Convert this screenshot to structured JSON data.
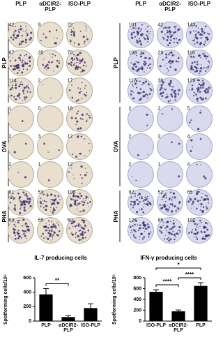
{
  "panels": [
    {
      "columns": [
        "PLP",
        "αDCIR2-PLP",
        "ISO-PLP"
      ],
      "groups": [
        {
          "label": "PLP",
          "rows": [
            [
              42,
              9,
              22
            ],
            [
              67,
              20,
              70
            ],
            [
              114,
              2,
              17
            ]
          ]
        },
        {
          "label": "OVA",
          "rows": [
            [
              1,
              0,
              18
            ],
            [
              2,
              3,
              12
            ],
            [
              2,
              1,
              12
            ]
          ]
        },
        {
          "label": "PHA",
          "rows": [
            [
              81,
              53,
              108
            ],
            [
              69,
              55,
              60
            ]
          ]
        }
      ]
    },
    {
      "columns": [
        "PLP",
        "αDCIR2-PLP",
        "ISO-PLP"
      ],
      "groups": [
        {
          "label": "PLP",
          "rows": [
            [
              101,
              42,
              143
            ],
            [
              108,
              29,
              116
            ],
            [
              117,
              36,
              129
            ]
          ]
        },
        {
          "label": "OVA",
          "rows": [
            [
              2,
              2,
              5
            ],
            [
              2,
              2,
              4
            ],
            [
              2,
              1,
              4
            ]
          ]
        },
        {
          "label": "PHA",
          "rows": [
            [
              92,
              52,
              65
            ],
            [
              124,
              85,
              102
            ]
          ]
        }
      ]
    }
  ],
  "chart_data": [
    {
      "type": "bar",
      "title": "IL-7 producing cells",
      "y_label": "Spotforming cells/10⁶",
      "categories": [
        "PLP",
        "αDCIR2-PLP",
        "ISO-PLP"
      ],
      "values": [
        370,
        55,
        180
      ],
      "errors": [
        80,
        20,
        60
      ],
      "color": "#000000",
      "ylim": [
        0,
        600
      ],
      "yticks": [
        0,
        200,
        400,
        600
      ],
      "annotations": [
        {
          "text": "**",
          "between": [
            0,
            1
          ]
        }
      ]
    },
    {
      "type": "bar",
      "title": "IFN-γ producing cells",
      "y_label": "Spotforming cells/10⁶",
      "categories": [
        "ISO-PLP",
        "αDCIR2-PLP",
        "PLP"
      ],
      "values": [
        540,
        180,
        650
      ],
      "errors": [
        40,
        25,
        60
      ],
      "color": "#000000",
      "ylim": [
        0,
        800
      ],
      "yticks": [
        0,
        200,
        400,
        600,
        800
      ],
      "annotations": [
        {
          "text": "****",
          "between": [
            0,
            1
          ]
        },
        {
          "text": "****",
          "between": [
            1,
            2
          ]
        },
        {
          "text": "*",
          "between": [
            0,
            2
          ]
        }
      ]
    }
  ]
}
